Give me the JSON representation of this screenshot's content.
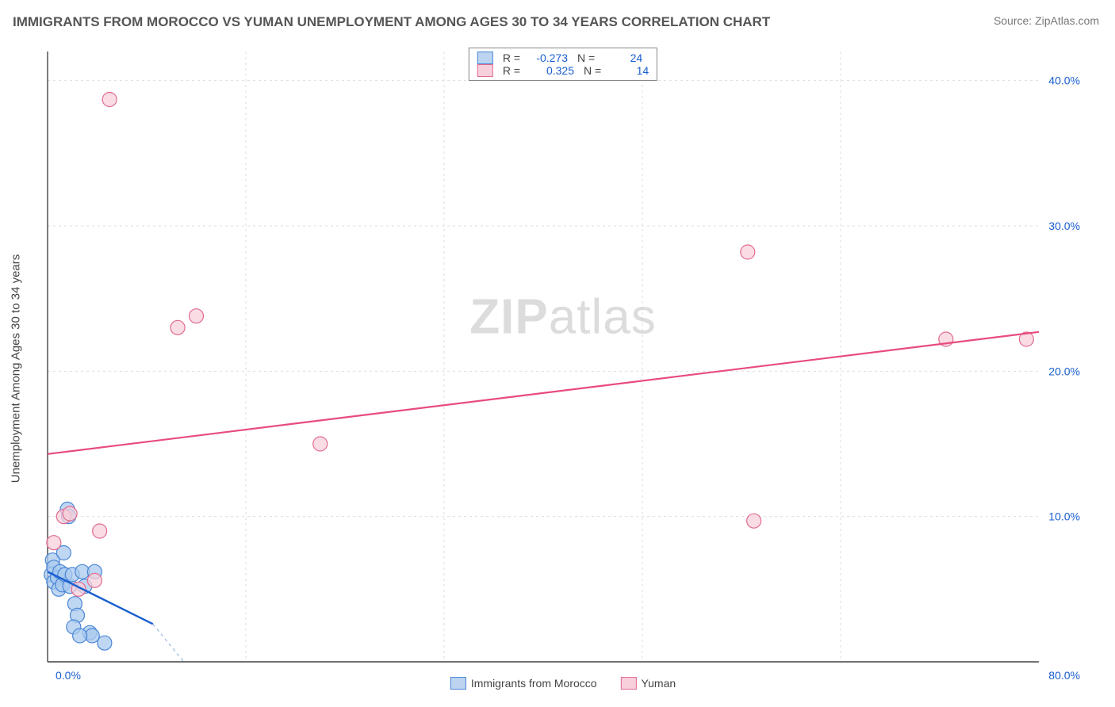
{
  "title": "IMMIGRANTS FROM MOROCCO VS YUMAN UNEMPLOYMENT AMONG AGES 30 TO 34 YEARS CORRELATION CHART",
  "source": "Source: ZipAtlas.com",
  "ylabel": "Unemployment Among Ages 30 to 34 years",
  "watermark_a": "ZIP",
  "watermark_b": "atlas",
  "chart": {
    "type": "scatter",
    "background_color": "#ffffff",
    "grid_color": "#dddddd",
    "axis_color": "#444444",
    "tick_color": "#1a5fd0",
    "xlim": [
      0,
      80
    ],
    "ylim": [
      0,
      42
    ],
    "xticks": [
      0,
      80
    ],
    "xticklabels": [
      "0.0%",
      "80.0%"
    ],
    "yticks": [
      10,
      20,
      30,
      40
    ],
    "yticklabels": [
      "10.0%",
      "20.0%",
      "30.0%",
      "40.0%"
    ],
    "tick_fontsize": 14,
    "series": [
      {
        "name": "Immigrants from Morocco",
        "short": "morocco",
        "marker_fill": "#a9c9ee",
        "marker_stroke": "#4a86d6",
        "swatch_fill": "#bcd4f0",
        "swatch_stroke": "#4a86d6",
        "R": "-0.273",
        "N": "24",
        "marker_radius": 9,
        "stroke_width": 1.2,
        "trend": {
          "x1": 0,
          "y1": 6.2,
          "x2": 8.5,
          "y2": 2.6,
          "color_solid": "#1a5fd0",
          "width_solid": 2.4
        },
        "trend_dashed": {
          "x1": 8.5,
          "y1": 2.6,
          "x2": 11,
          "y2": 0,
          "color": "#9bb8e0",
          "width": 1.2
        },
        "points": [
          {
            "x": 0.3,
            "y": 6.0
          },
          {
            "x": 0.5,
            "y": 5.5
          },
          {
            "x": 0.4,
            "y": 7.0
          },
          {
            "x": 0.5,
            "y": 6.5
          },
          {
            "x": 0.8,
            "y": 5.8
          },
          {
            "x": 0.9,
            "y": 5.0
          },
          {
            "x": 1.0,
            "y": 6.2
          },
          {
            "x": 1.2,
            "y": 5.3
          },
          {
            "x": 1.3,
            "y": 7.5
          },
          {
            "x": 1.6,
            "y": 10.5
          },
          {
            "x": 1.7,
            "y": 10.0
          },
          {
            "x": 1.4,
            "y": 6.0
          },
          {
            "x": 1.8,
            "y": 5.2
          },
          {
            "x": 2.0,
            "y": 6.0
          },
          {
            "x": 2.2,
            "y": 4.0
          },
          {
            "x": 2.4,
            "y": 3.2
          },
          {
            "x": 2.8,
            "y": 6.2
          },
          {
            "x": 3.4,
            "y": 2.0
          },
          {
            "x": 3.6,
            "y": 1.8
          },
          {
            "x": 2.1,
            "y": 2.4
          },
          {
            "x": 2.6,
            "y": 1.8
          },
          {
            "x": 4.6,
            "y": 1.3
          },
          {
            "x": 3.0,
            "y": 5.2
          },
          {
            "x": 3.8,
            "y": 6.2
          }
        ]
      },
      {
        "name": "Yuman",
        "short": "yuman",
        "marker_fill": "#f7d0db",
        "marker_stroke": "#e26a8e",
        "swatch_fill": "#f7d0db",
        "swatch_stroke": "#e26a8e",
        "R": "0.325",
        "N": "14",
        "marker_radius": 9,
        "stroke_width": 1.2,
        "trend": {
          "x1": 0,
          "y1": 14.3,
          "x2": 80,
          "y2": 22.7,
          "color_solid": "#e84b7d",
          "width_solid": 2.2
        },
        "points": [
          {
            "x": 5.0,
            "y": 38.7
          },
          {
            "x": 10.5,
            "y": 23.0
          },
          {
            "x": 12.0,
            "y": 23.8
          },
          {
            "x": 22.0,
            "y": 15.0
          },
          {
            "x": 56.5,
            "y": 28.2
          },
          {
            "x": 57.0,
            "y": 9.7
          },
          {
            "x": 72.5,
            "y": 22.2
          },
          {
            "x": 79.0,
            "y": 22.2
          },
          {
            "x": 0.5,
            "y": 8.2
          },
          {
            "x": 1.3,
            "y": 10.0
          },
          {
            "x": 2.5,
            "y": 5.0
          },
          {
            "x": 4.2,
            "y": 9.0
          },
          {
            "x": 3.8,
            "y": 5.6
          },
          {
            "x": 1.8,
            "y": 10.2
          }
        ]
      }
    ]
  },
  "legend_bottom": [
    {
      "label": "Immigrants from Morocco",
      "fill": "#bcd4f0",
      "stroke": "#4a86d6"
    },
    {
      "label": "Yuman",
      "fill": "#f7d0db",
      "stroke": "#e26a8e"
    }
  ]
}
